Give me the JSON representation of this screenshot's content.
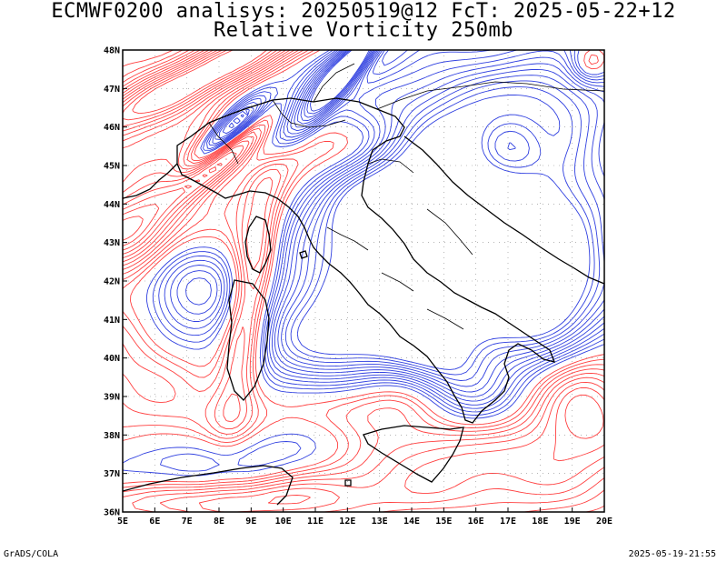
{
  "title_line1": "ECMWF0200 analisys: 20250519@12 FcT: 2025-05-22+12",
  "title_line2": "Relative Vorticity 250mb",
  "lat_labels": [
    "48N",
    "47N",
    "46N",
    "45N",
    "44N",
    "43N",
    "42N",
    "41N",
    "40N",
    "39N",
    "38N",
    "37N",
    "36N"
  ],
  "lon_labels": [
    "5E",
    "6E",
    "7E",
    "8E",
    "9E",
    "10E",
    "11E",
    "12E",
    "13E",
    "14E",
    "15E",
    "16E",
    "17E",
    "18E",
    "19E",
    "20E"
  ],
  "footer_left": "GrADS/COLA",
  "footer_right": "2025-05-19-21:55",
  "colors": {
    "positive_vorticity": "#ff4040",
    "negative_vorticity": "#3040e0",
    "coastline": "#000000",
    "grid": "#888888"
  }
}
